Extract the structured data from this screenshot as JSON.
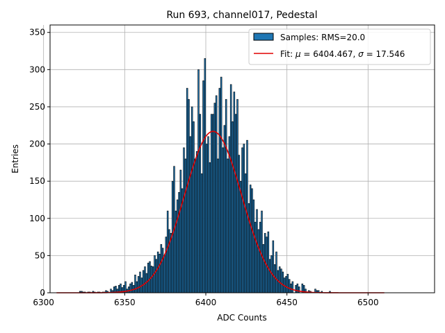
{
  "chart_data": {
    "type": "bar",
    "title": "Run 693, channel017, Pedestal",
    "xlabel": "ADC Counts",
    "ylabel": "Entries",
    "xlim": [
      6304,
      6541
    ],
    "ylim": [
      0,
      360
    ],
    "xticks": [
      6300,
      6350,
      6400,
      6450,
      6500
    ],
    "yticks": [
      0,
      50,
      100,
      150,
      200,
      250,
      300,
      350
    ],
    "grid": true,
    "legend_position": "top-right",
    "bar_color": "#1f77b4",
    "fit_color": "#e00000",
    "bins": {
      "x": [
        6322,
        6323,
        6324,
        6325,
        6327,
        6328,
        6330,
        6331,
        6333,
        6334,
        6336,
        6337,
        6338,
        6339,
        6341,
        6342,
        6343,
        6344,
        6345,
        6346,
        6347,
        6348,
        6349,
        6350,
        6351,
        6352,
        6353,
        6354,
        6355,
        6356,
        6357,
        6358,
        6359,
        6360,
        6361,
        6362,
        6363,
        6364,
        6365,
        6366,
        6367,
        6368,
        6369,
        6370,
        6371,
        6372,
        6373,
        6374,
        6375,
        6376,
        6377,
        6378,
        6379,
        6380,
        6381,
        6382,
        6383,
        6384,
        6385,
        6386,
        6387,
        6388,
        6389,
        6390,
        6391,
        6392,
        6393,
        6394,
        6395,
        6396,
        6397,
        6398,
        6399,
        6400,
        6401,
        6402,
        6403,
        6404,
        6405,
        6406,
        6407,
        6408,
        6409,
        6410,
        6411,
        6412,
        6413,
        6414,
        6415,
        6416,
        6417,
        6418,
        6419,
        6420,
        6421,
        6422,
        6423,
        6424,
        6425,
        6426,
        6427,
        6428,
        6429,
        6430,
        6431,
        6432,
        6433,
        6434,
        6435,
        6436,
        6437,
        6438,
        6439,
        6440,
        6441,
        6442,
        6443,
        6444,
        6445,
        6446,
        6447,
        6448,
        6449,
        6450,
        6451,
        6452,
        6453,
        6455,
        6456,
        6457,
        6459,
        6460,
        6461,
        6463,
        6464,
        6467,
        6468,
        6469,
        6471,
        6476
      ],
      "counts": [
        2,
        2,
        1,
        1,
        1,
        1,
        2,
        1,
        1,
        1,
        1,
        1,
        3,
        2,
        5,
        3,
        8,
        9,
        5,
        10,
        12,
        7,
        10,
        15,
        5,
        8,
        12,
        14,
        10,
        24,
        15,
        22,
        28,
        20,
        30,
        35,
        26,
        40,
        42,
        36,
        35,
        50,
        45,
        55,
        52,
        65,
        60,
        50,
        75,
        110,
        85,
        80,
        150,
        170,
        110,
        125,
        135,
        165,
        140,
        195,
        180,
        275,
        260,
        210,
        250,
        230,
        180,
        190,
        300,
        240,
        160,
        285,
        315,
        200,
        210,
        175,
        240,
        240,
        255,
        265,
        180,
        275,
        290,
        195,
        225,
        260,
        180,
        210,
        280,
        230,
        270,
        240,
        260,
        185,
        150,
        195,
        200,
        160,
        205,
        120,
        145,
        140,
        125,
        95,
        112,
        85,
        95,
        110,
        65,
        80,
        75,
        82,
        45,
        50,
        70,
        38,
        55,
        30,
        35,
        32,
        28,
        20,
        22,
        25,
        18,
        12,
        15,
        10,
        12,
        8,
        12,
        10,
        5,
        3,
        2,
        5,
        3,
        3,
        2,
        2
      ]
    },
    "fit": {
      "mu": 6404.467,
      "sigma": 17.546,
      "amplitude": 217,
      "x_range": [
        6308,
        6510
      ]
    },
    "legend": {
      "bars": "Samples: RMS=20.0",
      "fit_prefix": "Fit: ",
      "mu_symbol": "μ",
      "mu_text": " = 6404.467, ",
      "sigma_symbol": "σ",
      "sigma_text": " = 17.546"
    }
  }
}
